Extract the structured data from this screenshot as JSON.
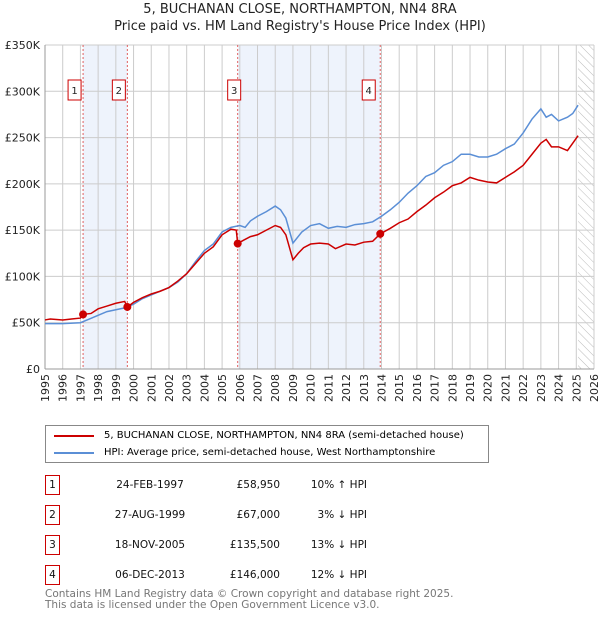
{
  "title": "5, BUCHANAN CLOSE, NORTHAMPTON, NN4 8RA",
  "subtitle": "Price paid vs. HM Land Registry's House Price Index (HPI)",
  "chart_data": {
    "type": "line",
    "xlim": [
      1995,
      2026
    ],
    "ylim": [
      0,
      350000
    ],
    "x_ticks": [
      "1995",
      "1996",
      "1997",
      "1998",
      "1999",
      "2000",
      "2001",
      "2002",
      "2003",
      "2004",
      "2005",
      "2006",
      "2007",
      "2008",
      "2009",
      "2010",
      "2011",
      "2012",
      "2013",
      "2014",
      "2015",
      "2016",
      "2017",
      "2018",
      "2019",
      "2020",
      "2021",
      "2022",
      "2023",
      "2024",
      "2025",
      "2026"
    ],
    "y_ticks": [
      {
        "v": 0,
        "label": "£0"
      },
      {
        "v": 50000,
        "label": "£50K"
      },
      {
        "v": 100000,
        "label": "£100K"
      },
      {
        "v": 150000,
        "label": "£150K"
      },
      {
        "v": 200000,
        "label": "£200K"
      },
      {
        "v": 250000,
        "label": "£250K"
      },
      {
        "v": 300000,
        "label": "£300K"
      },
      {
        "v": 350000,
        "label": "£350K"
      }
    ],
    "shaded_ranges": [
      [
        1997.15,
        1999.65
      ],
      [
        2005.88,
        2013.93
      ]
    ],
    "forecast_from": 2025.1,
    "series": [
      {
        "name": "5, BUCHANAN CLOSE, NORTHAMPTON, NN4 8RA (semi-detached house)",
        "color": "#cc0000",
        "x": [
          1995,
          1995.3,
          1996,
          1996.5,
          1997,
          1997.15,
          1997.6,
          1998,
          1998.5,
          1999,
          1999.5,
          1999.65,
          2000,
          2000.5,
          2001,
          2001.5,
          2002,
          2002.5,
          2003,
          2003.5,
          2004,
          2004.5,
          2005,
          2005.5,
          2005.8,
          2005.88,
          2006.2,
          2006.6,
          2007,
          2007.5,
          2008,
          2008.3,
          2008.6,
          2009,
          2009.3,
          2009.6,
          2010,
          2010.5,
          2011,
          2011.4,
          2012,
          2012.5,
          2013,
          2013.5,
          2013.93,
          2014.5,
          2015,
          2015.5,
          2016,
          2016.5,
          2017,
          2017.5,
          2018,
          2018.5,
          2019,
          2019.5,
          2020,
          2020.5,
          2021,
          2021.5,
          2022,
          2022.5,
          2023,
          2023.3,
          2023.6,
          2024,
          2024.5,
          2024.8,
          2025.1
        ],
        "y": [
          53000,
          54000,
          53000,
          54000,
          55000,
          58950,
          60000,
          65000,
          68000,
          71000,
          73000,
          67000,
          72000,
          77000,
          81000,
          84000,
          88000,
          95000,
          103000,
          114000,
          125000,
          132000,
          145000,
          151000,
          150000,
          135500,
          139000,
          143000,
          145000,
          150000,
          155000,
          153000,
          145000,
          118000,
          125000,
          131000,
          135000,
          136000,
          135000,
          130000,
          135000,
          134000,
          137000,
          138000,
          146000,
          152000,
          158000,
          162000,
          170000,
          177000,
          185000,
          191000,
          198000,
          201000,
          207000,
          204000,
          202000,
          201000,
          207000,
          213000,
          220000,
          232000,
          244000,
          248000,
          240000,
          240000,
          236000,
          244000,
          252000
        ]
      },
      {
        "name": "HPI: Average price, semi-detached house, West Northamptonshire",
        "color": "#5b8fd6",
        "x": [
          1995,
          1996,
          1997,
          1997.5,
          1998,
          1998.5,
          1999,
          1999.5,
          2000,
          2000.5,
          2001,
          2001.5,
          2002,
          2002.5,
          2003,
          2003.5,
          2004,
          2004.5,
          2005,
          2005.5,
          2006,
          2006.3,
          2006.6,
          2007,
          2007.5,
          2008,
          2008.3,
          2008.6,
          2009,
          2009.5,
          2010,
          2010.5,
          2011,
          2011.5,
          2012,
          2012.5,
          2013,
          2013.5,
          2014,
          2014.5,
          2015,
          2015.5,
          2016,
          2016.5,
          2017,
          2017.5,
          2018,
          2018.5,
          2019,
          2019.5,
          2020,
          2020.5,
          2021,
          2021.5,
          2022,
          2022.5,
          2023,
          2023.3,
          2023.6,
          2024,
          2024.5,
          2024.8,
          2025.1
        ],
        "y": [
          49000,
          49000,
          50000,
          54000,
          58000,
          62000,
          64000,
          66000,
          70000,
          76000,
          80000,
          84000,
          88000,
          94000,
          103000,
          116000,
          128000,
          135000,
          148000,
          153000,
          155000,
          153000,
          160000,
          165000,
          170000,
          176000,
          172000,
          163000,
          136000,
          148000,
          155000,
          157000,
          152000,
          154000,
          153000,
          156000,
          157000,
          159000,
          165000,
          172000,
          180000,
          190000,
          198000,
          208000,
          212000,
          220000,
          224000,
          232000,
          232000,
          229000,
          229000,
          232000,
          238000,
          243000,
          255000,
          270000,
          281000,
          272000,
          275000,
          268000,
          272000,
          276000,
          285000
        ]
      }
    ],
    "sales": [
      {
        "id": "1",
        "x": 1997.15,
        "y": 58950,
        "date": "24-FEB-1997",
        "price": "£58,950",
        "delta": "10% ↑ HPI"
      },
      {
        "id": "2",
        "x": 1999.65,
        "y": 67000,
        "date": "27-AUG-1999",
        "price": "£67,000",
        "delta": "3% ↓ HPI"
      },
      {
        "id": "3",
        "x": 2005.88,
        "y": 135500,
        "date": "18-NOV-2005",
        "price": "£135,500",
        "delta": "13% ↓ HPI"
      },
      {
        "id": "4",
        "x": 2013.93,
        "y": 146000,
        "date": "06-DEC-2013",
        "price": "£146,000",
        "delta": "12% ↓ HPI"
      }
    ]
  },
  "legend": [
    "5, BUCHANAN CLOSE, NORTHAMPTON, NN4 8RA (semi-detached house)",
    "HPI: Average price, semi-detached house, West Northamptonshire"
  ],
  "footer": [
    "Contains HM Land Registry data © Crown copyright and database right 2025.",
    "This data is licensed under the Open Government Licence v3.0."
  ]
}
